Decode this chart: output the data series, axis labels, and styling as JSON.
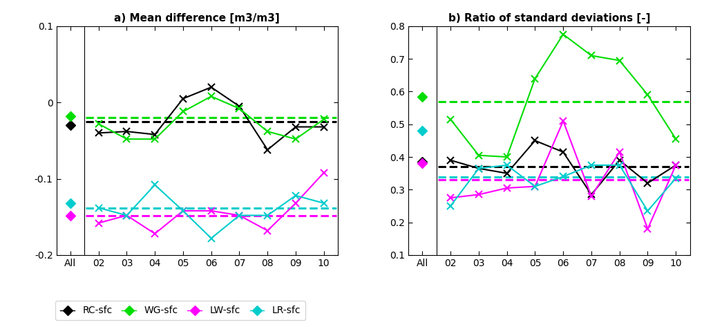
{
  "x_labels": [
    "All",
    "02",
    "03",
    "04",
    "05",
    "06",
    "07",
    "08",
    "09",
    "10"
  ],
  "panel_a": {
    "title": "a) Mean difference [m3/m3]",
    "ylim": [
      -0.2,
      0.1
    ],
    "yticks": [
      -0.2,
      -0.1,
      0.0,
      0.1
    ],
    "ytick_labels": [
      "-0.2",
      "-0.1",
      "0",
      "0.1"
    ],
    "RC_all": -0.03,
    "RC_series": [
      -0.04,
      -0.038,
      -0.042,
      0.005,
      0.02,
      -0.005,
      -0.062,
      -0.032,
      -0.032
    ],
    "RC_mean": -0.025,
    "WG_all": -0.018,
    "WG_series": [
      -0.028,
      -0.048,
      -0.048,
      -0.012,
      0.008,
      -0.008,
      -0.038,
      -0.048,
      -0.022
    ],
    "WG_mean": -0.02,
    "LW_all": -0.148,
    "LW_series": [
      -0.158,
      -0.148,
      -0.172,
      -0.142,
      -0.142,
      -0.148,
      -0.168,
      -0.132,
      -0.092
    ],
    "LW_mean": -0.148,
    "LR_all": -0.132,
    "LR_series": [
      -0.138,
      -0.148,
      -0.108,
      -0.142,
      -0.178,
      -0.148,
      -0.148,
      -0.122,
      -0.132
    ],
    "LR_mean": -0.138
  },
  "panel_b": {
    "title": "b) Ratio of standard deviations [-]",
    "ylim": [
      0.1,
      0.8
    ],
    "yticks": [
      0.1,
      0.2,
      0.3,
      0.4,
      0.5,
      0.6,
      0.7,
      0.8
    ],
    "ytick_labels": [
      "0.1",
      "0.2",
      "0.3",
      "0.4",
      "0.5",
      "0.6",
      "0.7",
      "0.8"
    ],
    "RC_all": 0.385,
    "RC_series": [
      0.39,
      0.365,
      0.35,
      0.45,
      0.415,
      0.285,
      0.39,
      0.32,
      0.375
    ],
    "RC_mean": 0.37,
    "WG_all": 0.585,
    "WG_series": [
      0.515,
      0.405,
      0.4,
      0.64,
      0.775,
      0.71,
      0.695,
      0.59,
      0.455
    ],
    "WG_mean": 0.57,
    "LW_all": 0.382,
    "LW_series": [
      0.275,
      0.285,
      0.305,
      0.31,
      0.51,
      0.28,
      0.415,
      0.18,
      0.375
    ],
    "LW_mean": 0.33,
    "LR_all": 0.48,
    "LR_series": [
      0.25,
      0.365,
      0.375,
      0.31,
      0.34,
      0.375,
      0.375,
      0.235,
      0.335
    ],
    "LR_mean": 0.338
  },
  "colors": {
    "RC": "#000000",
    "WG": "#00dd00",
    "LW": "#ff00ff",
    "LR": "#00cccc"
  },
  "legend_labels": [
    "RC-sfc",
    "WG-sfc",
    "LW-sfc",
    "LR-sfc"
  ],
  "marker_size": 6,
  "linewidth": 1.5,
  "dash_linewidth": 2.2
}
